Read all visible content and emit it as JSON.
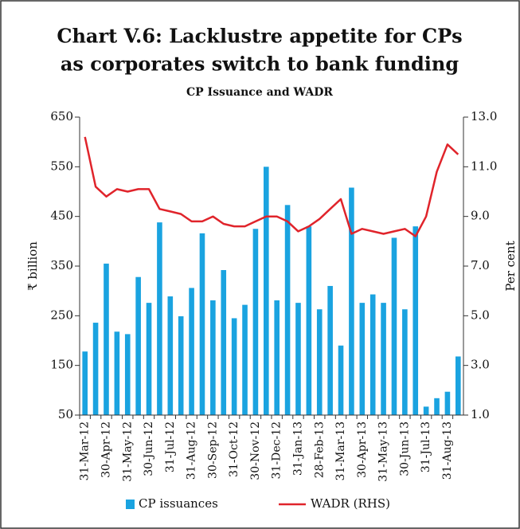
{
  "chart_data": {
    "type": "bar-line",
    "title": [
      "Chart V.6: Lacklustre appetite for CPs",
      "as corporates switch to bank funding"
    ],
    "subtitle": "CP Issuance and WADR",
    "y_label": "₹ billion",
    "y2_label": "Per cent",
    "categories": [
      "31-Mar-12",
      null,
      "30-Apr-12",
      null,
      "31-May-12",
      null,
      "30-Jun-12",
      null,
      "31-Jul-12",
      null,
      "31-Aug-12",
      null,
      "30-Sep-12",
      null,
      "31-Oct-12",
      null,
      "30-Nov-12",
      null,
      "31-Dec-12",
      null,
      "31-Jan-13",
      null,
      "28-Feb-13",
      null,
      "31-Mar-13",
      null,
      "30-Apr-13",
      null,
      "31-May-13",
      null,
      "30-Jun-13",
      null,
      "31-Jul-13",
      null,
      "31-Aug-13",
      null
    ],
    "series": [
      {
        "name": "CP issuances",
        "type": "bar",
        "color": "#1aa3e0",
        "values": [
          178,
          236,
          355,
          218,
          213,
          328,
          276,
          438,
          289,
          249,
          306,
          416,
          281,
          342,
          245,
          272,
          425,
          550,
          281,
          473,
          276,
          430,
          263,
          310,
          190,
          508,
          276,
          293,
          276,
          407,
          263,
          430,
          67,
          84,
          97,
          168
        ]
      },
      {
        "name": "WADR (RHS)",
        "type": "line",
        "axis": "y2",
        "color": "#e0242b",
        "values": [
          12.2,
          10.2,
          9.8,
          10.1,
          10.0,
          10.1,
          10.1,
          9.3,
          9.2,
          9.1,
          8.8,
          8.8,
          9.0,
          8.7,
          8.6,
          8.6,
          8.8,
          9.0,
          9.0,
          8.8,
          8.4,
          8.6,
          8.9,
          9.3,
          9.7,
          8.3,
          8.5,
          8.4,
          8.3,
          8.4,
          8.5,
          8.2,
          9.0,
          10.8,
          11.9,
          11.5
        ]
      }
    ],
    "ylim": [
      50,
      650
    ],
    "yticks": [
      50,
      150,
      250,
      350,
      450,
      550,
      650
    ],
    "y2lim": [
      1,
      13
    ],
    "y2ticks": [
      {
        "value": 1,
        "label": "1.0"
      },
      {
        "value": 3,
        "label": "3.0"
      },
      {
        "value": 5,
        "label": "5.0"
      },
      {
        "value": 7,
        "label": "7.0"
      },
      {
        "value": 9,
        "label": "9.0"
      },
      {
        "value": 11,
        "label": "11.0"
      },
      {
        "value": 13,
        "label": "13.0"
      }
    ]
  }
}
